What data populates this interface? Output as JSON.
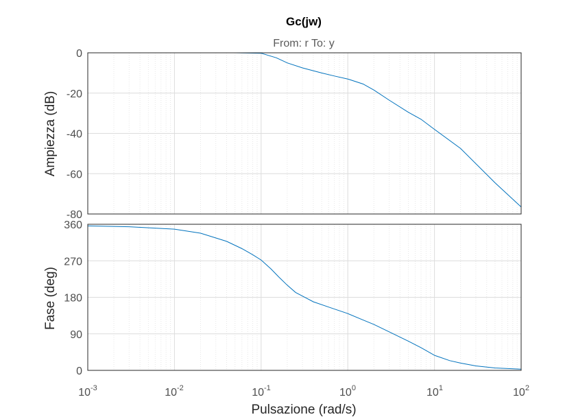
{
  "chart_data": {
    "type": "line",
    "title": "Gc(jw)",
    "subtitle": "From: r  To: y",
    "xlabel": "Pulsazione  (rad/s)",
    "xscale": "log",
    "xlim": [
      0.001,
      100
    ],
    "x_tick_labels": [
      {
        "base": "10",
        "exp": "-3"
      },
      {
        "base": "10",
        "exp": "-2"
      },
      {
        "base": "10",
        "exp": "-1"
      },
      {
        "base": "10",
        "exp": "0"
      },
      {
        "base": "10",
        "exp": "1"
      },
      {
        "base": "10",
        "exp": "2"
      }
    ],
    "grid": true,
    "line_color": "#0072BD",
    "panels": [
      {
        "name": "magnitude",
        "ylabel": "Ampiezza (dB)",
        "ylim": [
          -80,
          0
        ],
        "yticks": [
          0,
          -20,
          -40,
          -60,
          -80
        ],
        "x": [
          0.001,
          0.01,
          0.05,
          0.1,
          0.15,
          0.2,
          0.3,
          0.5,
          0.7,
          1,
          1.5,
          2,
          3,
          5,
          7,
          10,
          20,
          50,
          100
        ],
        "y": [
          0,
          0,
          0,
          -0.2,
          -2.5,
          -5,
          -7.5,
          -10,
          -11.5,
          -13,
          -15.5,
          -18.5,
          -23.5,
          -29.5,
          -33,
          -38,
          -47.5,
          -64.5,
          -76.5
        ]
      },
      {
        "name": "phase",
        "ylabel": "Fase (deg)",
        "ylim": [
          0,
          360
        ],
        "yticks": [
          0,
          90,
          180,
          270,
          360
        ],
        "x": [
          0.001,
          0.003,
          0.01,
          0.02,
          0.04,
          0.06,
          0.08,
          0.1,
          0.13,
          0.16,
          0.2,
          0.25,
          0.3,
          0.4,
          0.6,
          1,
          1.5,
          2,
          3,
          5,
          7,
          10,
          15,
          20,
          30,
          50,
          100
        ],
        "y": [
          356,
          354,
          348,
          338,
          318,
          300,
          285,
          272,
          250,
          230,
          210,
          192,
          183,
          169,
          156,
          140,
          124,
          113,
          95,
          72,
          56,
          37,
          24,
          18,
          11,
          6,
          3
        ]
      }
    ]
  }
}
